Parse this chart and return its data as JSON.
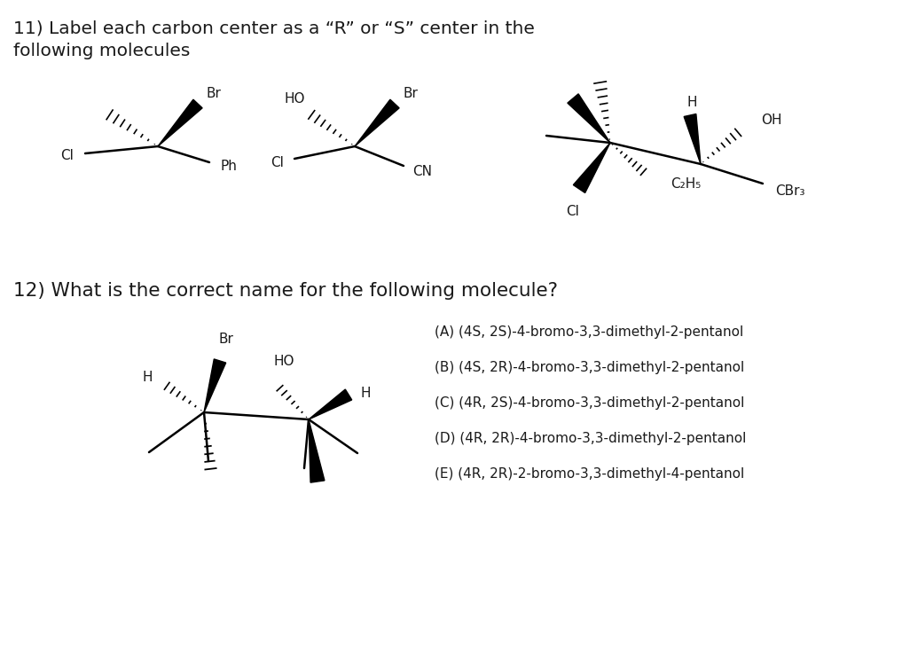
{
  "title11": "11) Label each carbon center as a “R” or “S” center in the",
  "title11b": "following molecules",
  "title12": "12) What is the correct name for the following molecule?",
  "options": [
    "(A) (4S, 2S)-4-bromo-3,3-dimethyl-2-pentanol",
    "(B) (4S, 2R)-4-bromo-3,3-dimethyl-2-pentanol",
    "(C) (4R, 2S)-4-bromo-3,3-dimethyl-2-pentanol",
    "(D) (4R, 2R)-4-bromo-3,3-dimethyl-2-pentanol",
    "(E) (4R, 2R)-2-bromo-3,3-dimethyl-4-pentanol"
  ],
  "bg_color": "#ffffff",
  "text_color": "#1a1a1a",
  "font_size_title": 14.5,
  "font_size_label": 11,
  "font_size_options": 11
}
